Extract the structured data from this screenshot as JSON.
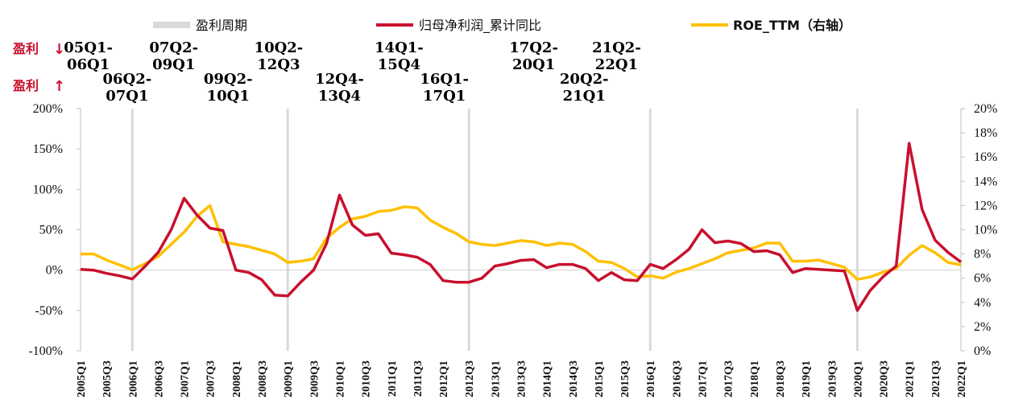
{
  "chart_data": {
    "type": "line",
    "legend": {
      "band": "盈利周期",
      "series1": "归母净利润_累计同比",
      "series2": "ROE_TTM（右轴）"
    },
    "side_labels": {
      "down": "盈利",
      "up": "盈利"
    },
    "colors": {
      "series1": "#c8102e",
      "series2": "#ffc000",
      "band": "#d9d9d9"
    },
    "left_axis": {
      "min": -100,
      "max": 200,
      "ticks": [
        "200%",
        "150%",
        "100%",
        "50%",
        "0%",
        "-50%",
        "-100%"
      ]
    },
    "right_axis": {
      "min": 0,
      "max": 20,
      "ticks": [
        "20%",
        "18%",
        "16%",
        "14%",
        "12%",
        "10%",
        "8%",
        "6%",
        "4%",
        "2%",
        "0%"
      ]
    },
    "x_labels": [
      "2005Q1",
      "2005Q3",
      "2006Q1",
      "2006Q3",
      "2007Q1",
      "2007Q3",
      "2008Q1",
      "2008Q3",
      "2009Q1",
      "2009Q3",
      "2010Q1",
      "2010Q3",
      "2011Q1",
      "2011Q3",
      "2012Q1",
      "2012Q3",
      "2013Q1",
      "2013Q3",
      "2014Q1",
      "2014Q3",
      "2015Q1",
      "2015Q3",
      "2016Q1",
      "2016Q3",
      "2017Q1",
      "2017Q3",
      "2018Q1",
      "2018Q3",
      "2019Q1",
      "2019Q3",
      "2020Q1",
      "2020Q3",
      "2021Q1",
      "2021Q3",
      "2022Q1"
    ],
    "period_boundaries": [
      "2006Q1",
      "2009Q1",
      "2012Q3",
      "2016Q1",
      "2020Q1"
    ],
    "period_labels": [
      {
        "lines": [
          "05Q1-",
          "06Q1"
        ],
        "at": 0.6,
        "row": 0
      },
      {
        "lines": [
          "06Q2-",
          "07Q1"
        ],
        "at": 3.6,
        "row": 1
      },
      {
        "lines": [
          "07Q2-",
          "09Q1"
        ],
        "at": 7.2,
        "row": 0
      },
      {
        "lines": [
          "09Q2-",
          "10Q1"
        ],
        "at": 11.4,
        "row": 1
      },
      {
        "lines": [
          "10Q2-",
          "12Q3"
        ],
        "at": 15.3,
        "row": 0
      },
      {
        "lines": [
          "12Q4-",
          "13Q4"
        ],
        "at": 20.0,
        "row": 1
      },
      {
        "lines": [
          "14Q1-",
          "15Q4"
        ],
        "at": 24.6,
        "row": 0
      },
      {
        "lines": [
          "16Q1-",
          "17Q1"
        ],
        "at": 28.1,
        "row": 1
      },
      {
        "lines": [
          "17Q2-",
          "20Q1"
        ],
        "at": 35.0,
        "row": 0
      },
      {
        "lines": [
          "20Q2-",
          "21Q1"
        ],
        "at": 38.9,
        "row": 1
      },
      {
        "lines": [
          "21Q2-",
          "22Q1"
        ],
        "at": 41.4,
        "row": 0
      }
    ],
    "series": [
      {
        "name": "归母净利润_累计同比",
        "axis": "left",
        "values": [
          1,
          0,
          -4,
          -7,
          -11,
          5,
          22,
          50,
          89,
          68,
          52,
          49,
          0,
          -3,
          -12,
          -31,
          -32,
          -15,
          0,
          33,
          93,
          56,
          43,
          45,
          21,
          19,
          16,
          7,
          -13,
          -15,
          -15,
          -10,
          5,
          8,
          12,
          13,
          3,
          7,
          7,
          2,
          -13,
          -3,
          -12,
          -13,
          7,
          2,
          13,
          26,
          50,
          34,
          36,
          33,
          23,
          24,
          19,
          -3,
          2,
          1,
          0,
          -1,
          -50,
          -25,
          -8,
          5,
          157,
          75,
          37,
          22,
          10
        ]
      },
      {
        "name": "ROE_TTM（右轴）",
        "axis": "right",
        "values": [
          8.0,
          8.0,
          7.5,
          7.1,
          6.7,
          7.2,
          7.8,
          8.8,
          9.8,
          11.1,
          12.0,
          9.0,
          8.8,
          8.6,
          8.3,
          8.0,
          7.3,
          7.4,
          7.6,
          9.3,
          10.2,
          10.9,
          11.1,
          11.5,
          11.6,
          11.9,
          11.8,
          10.8,
          10.2,
          9.7,
          9.0,
          8.8,
          8.7,
          8.9,
          9.1,
          9.0,
          8.7,
          8.9,
          8.8,
          8.2,
          7.4,
          7.3,
          6.8,
          6.1,
          6.2,
          6.0,
          6.5,
          6.8,
          7.2,
          7.6,
          8.1,
          8.3,
          8.5,
          8.9,
          8.9,
          7.4,
          7.4,
          7.5,
          7.2,
          6.9,
          5.9,
          6.1,
          6.5,
          6.8,
          7.9,
          8.7,
          8.1,
          7.3,
          7.1
        ]
      }
    ]
  }
}
